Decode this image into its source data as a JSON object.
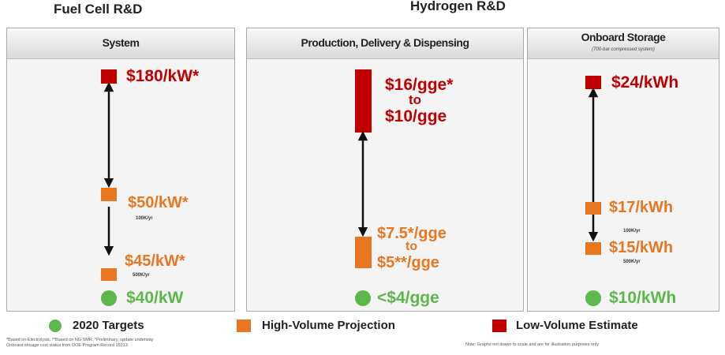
{
  "header": {
    "left": "Fuel Cell R&D",
    "right": "Hydrogen R&D"
  },
  "panels": [
    {
      "title": "System",
      "low_volume": "$180/kW*",
      "high_volume_100k": "$50/kW*",
      "rate_100k": "100K/yr",
      "high_volume_500k": "$45/kW*",
      "rate_500k": "500K/yr",
      "target": "$40/kW"
    },
    {
      "title": "Production, Delivery & Dispensing",
      "low_volume_top": "$16/gge*",
      "low_volume_to": "to",
      "low_volume_bottom": "$10/gge",
      "high_volume_top": "$7.5*/gge",
      "high_volume_to": "to",
      "high_volume_bottom": "$5**/gge",
      "target": "<$4/gge"
    },
    {
      "title": "Onboard Storage",
      "subtitle": "(700-bar compressed system)",
      "low_volume": "$24/kWh",
      "high_volume_100k": "$17/kWh",
      "rate_100k": "100K/yr",
      "high_volume_500k": "$15/kWh",
      "rate_500k": "500K/yr",
      "target": "$10/kWh"
    }
  ],
  "legend": [
    "2020 Targets",
    "High-Volume Projection",
    "Low-Volume Estimate"
  ],
  "footnotes": [
    "*Based on Electrolysis. **Based on NG SMR. *Preliminary, update underway",
    "Onboard storage cost status from DOE Program Record 15013"
  ],
  "note": "Note: Graphs not drawn to scale and are for illustration purposes only"
}
